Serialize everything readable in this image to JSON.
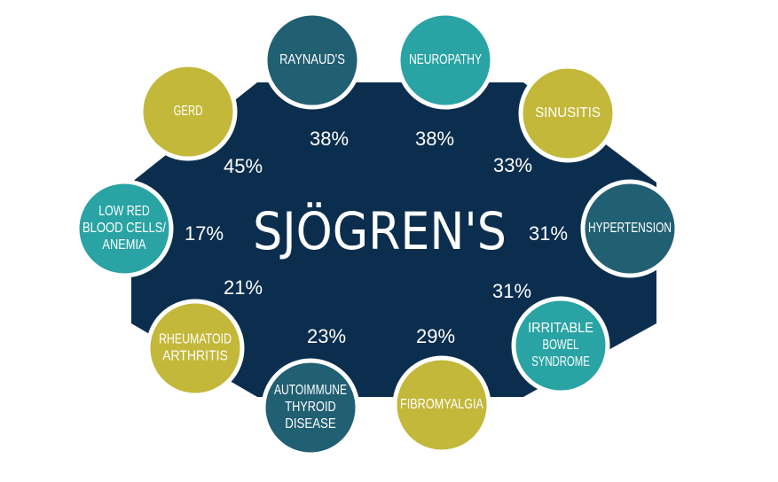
{
  "center": {
    "title": "SJÖGREN'S",
    "fill": "#0c2e4e",
    "text_color": "#ffffff"
  },
  "colors": {
    "olive": "#c3b83a",
    "teal": "#29a3a4",
    "slate": "#215f73",
    "percent_text": "#ffffff",
    "ring_stroke": "#ffffff"
  },
  "conditions": [
    {
      "id": "raynauds",
      "lines": [
        "RAYNAUD'S"
      ],
      "percent": "38%",
      "color": "slate"
    },
    {
      "id": "neuropathy",
      "lines": [
        "NEUROPATHY"
      ],
      "percent": "38%",
      "color": "teal"
    },
    {
      "id": "sinusitis",
      "lines": [
        "SINUSITIS"
      ],
      "percent": "33%",
      "color": "olive"
    },
    {
      "id": "hypertension",
      "lines": [
        "HYPERTENSION"
      ],
      "percent": "31%",
      "color": "slate"
    },
    {
      "id": "ibs",
      "lines": [
        "IRRITABLE",
        "BOWEL",
        "SYNDROME"
      ],
      "percent": "31%",
      "color": "teal"
    },
    {
      "id": "fibromyalgia",
      "lines": [
        "FIBROMYALGIA"
      ],
      "percent": "29%",
      "color": "olive"
    },
    {
      "id": "thyroid",
      "lines": [
        "AUTOIMMUNE",
        "THYROID",
        "DISEASE"
      ],
      "percent": "23%",
      "color": "slate"
    },
    {
      "id": "ra",
      "lines": [
        "RHEUMATOID",
        "ARTHRITIS"
      ],
      "percent": "21%",
      "color": "olive"
    },
    {
      "id": "anemia",
      "lines": [
        "LOW RED",
        "BLOOD CELLS/",
        "ANEMIA"
      ],
      "percent": "17%",
      "color": "teal"
    },
    {
      "id": "gerd",
      "lines": [
        "GERD"
      ],
      "percent": "45%",
      "color": "olive"
    }
  ]
}
